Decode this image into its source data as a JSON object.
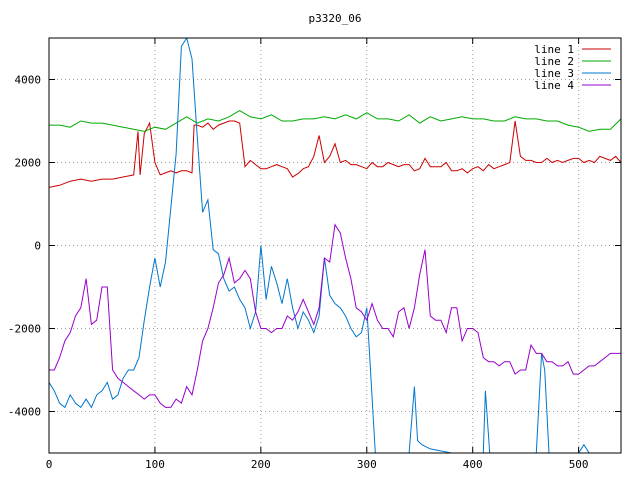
{
  "chart_data": {
    "type": "line",
    "title": "p3320_06",
    "xlabel": "",
    "ylabel": "",
    "xlim": [
      0,
      540
    ],
    "ylim": [
      -5000,
      5000
    ],
    "x_ticks": [
      0,
      100,
      200,
      300,
      400,
      500
    ],
    "x_tick_labels": [
      "0",
      "100",
      "200",
      "300",
      "400",
      "500"
    ],
    "y_ticks": [
      -4000,
      -2000,
      0,
      2000,
      4000
    ],
    "y_tick_labels": [
      "-4000",
      "-2000",
      "0",
      "2000",
      "4000"
    ],
    "grid": true,
    "legend_position": "top-right",
    "series": [
      {
        "name": "line 1",
        "color": "#cc0000",
        "x": [
          0,
          10,
          20,
          30,
          40,
          50,
          60,
          70,
          80,
          84,
          86,
          90,
          95,
          100,
          105,
          110,
          115,
          120,
          125,
          130,
          135,
          137,
          140,
          145,
          150,
          155,
          160,
          165,
          170,
          175,
          180,
          185,
          190,
          195,
          200,
          205,
          210,
          215,
          220,
          225,
          230,
          233,
          236,
          240,
          245,
          250,
          255,
          260,
          265,
          270,
          275,
          280,
          285,
          290,
          295,
          300,
          305,
          310,
          315,
          320,
          325,
          330,
          335,
          340,
          345,
          350,
          355,
          360,
          365,
          370,
          375,
          380,
          385,
          390,
          395,
          400,
          405,
          410,
          415,
          420,
          425,
          430,
          435,
          440,
          445,
          450,
          455,
          460,
          465,
          470,
          475,
          480,
          485,
          490,
          495,
          500,
          505,
          510,
          515,
          520,
          525,
          530,
          535,
          540
        ],
        "values": [
          1400,
          1450,
          1550,
          1600,
          1550,
          1600,
          1600,
          1650,
          1700,
          2750,
          1700,
          2700,
          2950,
          2000,
          1700,
          1750,
          1800,
          1750,
          1800,
          1800,
          1750,
          2900,
          2900,
          2850,
          2950,
          2800,
          2900,
          2950,
          3000,
          3000,
          2950,
          1900,
          2050,
          1950,
          1850,
          1850,
          1900,
          1950,
          1900,
          1850,
          1650,
          1700,
          1750,
          1850,
          1900,
          2150,
          2650,
          2000,
          2150,
          2450,
          2000,
          2050,
          1950,
          1950,
          1900,
          1850,
          2000,
          1900,
          1900,
          2000,
          1950,
          1900,
          1950,
          1950,
          1800,
          1850,
          2100,
          1900,
          1900,
          1900,
          2000,
          1800,
          1800,
          1850,
          1750,
          1850,
          1900,
          1800,
          1950,
          1850,
          1900,
          1950,
          2000,
          3000,
          2150,
          2050,
          2050,
          2000,
          2000,
          2100,
          2000,
          2050,
          2000,
          2050,
          2100,
          2100,
          2000,
          2050,
          2000,
          2150,
          2100,
          2050,
          2150,
          2000
        ]
      },
      {
        "name": "line 2",
        "color": "#00aa00",
        "x": [
          0,
          10,
          20,
          30,
          40,
          50,
          60,
          70,
          80,
          90,
          100,
          110,
          120,
          130,
          140,
          150,
          160,
          170,
          180,
          190,
          200,
          210,
          220,
          230,
          240,
          250,
          260,
          270,
          280,
          290,
          300,
          310,
          320,
          330,
          340,
          350,
          360,
          370,
          380,
          390,
          400,
          410,
          420,
          430,
          440,
          450,
          460,
          470,
          480,
          490,
          500,
          510,
          520,
          530,
          540
        ],
        "values": [
          2900,
          2900,
          2850,
          3000,
          2950,
          2950,
          2900,
          2850,
          2800,
          2750,
          2850,
          2800,
          2950,
          3100,
          2950,
          3050,
          3000,
          3100,
          3250,
          3100,
          3050,
          3150,
          3000,
          3000,
          3050,
          3050,
          3100,
          3050,
          3150,
          3050,
          3200,
          3050,
          3050,
          3000,
          3150,
          2950,
          3100,
          3000,
          3050,
          3100,
          3050,
          3050,
          3000,
          3000,
          3100,
          3050,
          3050,
          3000,
          3000,
          2900,
          2850,
          2750,
          2800,
          2800,
          3050
        ]
      },
      {
        "name": "line 3",
        "color": "#0077cc",
        "x": [
          0,
          5,
          10,
          15,
          20,
          25,
          30,
          35,
          40,
          45,
          50,
          55,
          60,
          65,
          70,
          75,
          80,
          85,
          90,
          95,
          100,
          105,
          110,
          115,
          120,
          125,
          130,
          135,
          140,
          145,
          150,
          155,
          160,
          165,
          170,
          175,
          180,
          185,
          190,
          195,
          200,
          205,
          210,
          215,
          220,
          225,
          230,
          235,
          240,
          245,
          250,
          255,
          260,
          265,
          270,
          275,
          280,
          285,
          290,
          295,
          300,
          303,
          308,
          320,
          340,
          345,
          348,
          352,
          360,
          380,
          400,
          410,
          412,
          416,
          420,
          440,
          460,
          465,
          468,
          472,
          480,
          500,
          505,
          510
        ],
        "values": [
          -3300,
          -3500,
          -3800,
          -3900,
          -3600,
          -3800,
          -3900,
          -3700,
          -3900,
          -3600,
          -3500,
          -3300,
          -3700,
          -3600,
          -3200,
          -3000,
          -3000,
          -2700,
          -1800,
          -1000,
          -300,
          -1000,
          -400,
          900,
          2200,
          4800,
          5000,
          4500,
          2600,
          800,
          1100,
          -100,
          -200,
          -800,
          -1100,
          -1000,
          -1300,
          -1500,
          -2000,
          -1600,
          0,
          -1300,
          -500,
          -900,
          -1400,
          -800,
          -1500,
          -2000,
          -1600,
          -1800,
          -2100,
          -1700,
          -300,
          -1200,
          -1400,
          -1500,
          -1700,
          -2000,
          -2200,
          -2100,
          -1500,
          -2800,
          -5000,
          -5000,
          -5000,
          -3400,
          -4700,
          -4800,
          -4900,
          -5000,
          -5000,
          -5000,
          -3500,
          -5000,
          -5000,
          -5000,
          -5000,
          -2600,
          -3000,
          -5000,
          -5000,
          -5000,
          -4800,
          -5000
        ]
      },
      {
        "name": "line 4",
        "color": "#9900cc",
        "x": [
          0,
          5,
          10,
          15,
          20,
          25,
          30,
          35,
          40,
          45,
          50,
          55,
          60,
          65,
          70,
          75,
          80,
          85,
          90,
          95,
          100,
          105,
          110,
          115,
          120,
          125,
          130,
          135,
          140,
          145,
          150,
          155,
          160,
          165,
          170,
          175,
          180,
          185,
          190,
          195,
          200,
          205,
          210,
          215,
          220,
          225,
          230,
          235,
          240,
          245,
          250,
          255,
          260,
          265,
          270,
          275,
          280,
          285,
          290,
          295,
          300,
          305,
          310,
          315,
          320,
          325,
          330,
          335,
          340,
          345,
          350,
          355,
          360,
          365,
          370,
          375,
          380,
          385,
          390,
          395,
          400,
          405,
          410,
          415,
          420,
          425,
          430,
          435,
          440,
          445,
          450,
          455,
          460,
          465,
          470,
          475,
          480,
          485,
          490,
          495,
          500,
          505,
          510,
          515,
          520,
          525,
          530,
          535,
          540
        ],
        "values": [
          -3000,
          -3000,
          -2700,
          -2300,
          -2100,
          -1700,
          -1500,
          -800,
          -1900,
          -1800,
          -1000,
          -1000,
          -3000,
          -3200,
          -3300,
          -3400,
          -3500,
          -3600,
          -3700,
          -3600,
          -3600,
          -3800,
          -3900,
          -3900,
          -3700,
          -3800,
          -3400,
          -3600,
          -3000,
          -2300,
          -2000,
          -1500,
          -900,
          -700,
          -300,
          -900,
          -800,
          -600,
          -800,
          -1600,
          -2000,
          -2000,
          -2100,
          -2000,
          -2000,
          -1700,
          -1800,
          -1600,
          -1300,
          -1600,
          -1900,
          -1500,
          -300,
          -400,
          500,
          300,
          -300,
          -800,
          -1500,
          -1600,
          -1800,
          -1400,
          -1800,
          -2000,
          -2000,
          -2200,
          -1600,
          -1500,
          -2000,
          -1500,
          -700,
          -100,
          -1700,
          -1800,
          -1800,
          -2100,
          -1500,
          -1500,
          -2300,
          -2000,
          -2000,
          -2100,
          -2700,
          -2800,
          -2800,
          -2900,
          -2800,
          -2800,
          -3100,
          -3000,
          -3000,
          -2400,
          -2600,
          -2600,
          -2800,
          -2800,
          -2900,
          -2900,
          -2800,
          -3100,
          -3100,
          -3000,
          -2900,
          -2900,
          -2800,
          -2700,
          -2600,
          -2600,
          -2600
        ]
      }
    ]
  }
}
